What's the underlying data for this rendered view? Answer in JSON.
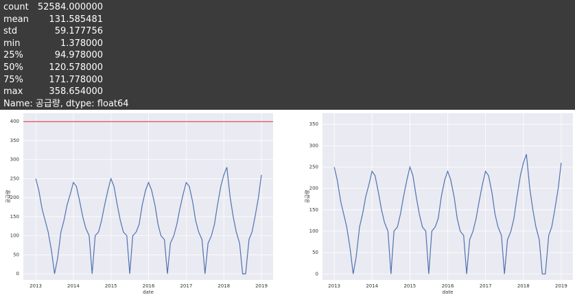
{
  "output": {
    "stats": [
      [
        "count",
        "52584.000000"
      ],
      [
        "mean",
        "131.585481"
      ],
      [
        "std",
        "59.177756"
      ],
      [
        "min",
        "1.378000"
      ],
      [
        "25%",
        "94.978000"
      ],
      [
        "50%",
        "120.578000"
      ],
      [
        "75%",
        "171.778000"
      ],
      [
        "max",
        "358.654000"
      ]
    ],
    "footer": "Name: 공급량, dtype: float64"
  },
  "chart_data": [
    {
      "type": "line",
      "xlabel": "date",
      "ylabel": "공급량",
      "xlim": [
        2012.67,
        2019.31
      ],
      "ylim": [
        -16,
        422
      ],
      "xticks": [
        2013,
        2014,
        2015,
        2016,
        2017,
        2018,
        2019
      ],
      "yticks": [
        0,
        50,
        100,
        150,
        200,
        250,
        300,
        350,
        400
      ],
      "grid": true,
      "hline": 400,
      "hline_color": "#d62728",
      "x": [
        2013,
        2013.08,
        2013.17,
        2013.25,
        2013.33,
        2013.42,
        2013.5,
        2013.58,
        2013.67,
        2013.75,
        2013.83,
        2013.92,
        2014,
        2014.08,
        2014.17,
        2014.25,
        2014.33,
        2014.42,
        2014.5,
        2014.58,
        2014.67,
        2014.75,
        2014.83,
        2014.92,
        2015,
        2015.08,
        2015.17,
        2015.25,
        2015.33,
        2015.42,
        2015.5,
        2015.58,
        2015.67,
        2015.75,
        2015.83,
        2015.92,
        2016,
        2016.08,
        2016.17,
        2016.25,
        2016.33,
        2016.42,
        2016.5,
        2016.58,
        2016.67,
        2016.75,
        2016.83,
        2016.92,
        2017,
        2017.08,
        2017.17,
        2017.25,
        2017.33,
        2017.42,
        2017.5,
        2017.58,
        2017.67,
        2017.75,
        2017.83,
        2017.92,
        2018,
        2018.08,
        2018.17,
        2018.25,
        2018.33,
        2018.42,
        2018.5,
        2018.58,
        2018.67,
        2018.75,
        2018.83,
        2018.92,
        2019
      ],
      "series": [
        {
          "color": "#4c72b0",
          "values": [
            250,
            220,
            170,
            140,
            110,
            60,
            0,
            40,
            110,
            140,
            180,
            210,
            240,
            230,
            190,
            150,
            120,
            100,
            0,
            100,
            110,
            140,
            180,
            220,
            250,
            230,
            180,
            140,
            110,
            100,
            0,
            100,
            110,
            130,
            180,
            220,
            240,
            220,
            180,
            130,
            100,
            90,
            0,
            80,
            100,
            130,
            170,
            210,
            240,
            230,
            190,
            140,
            110,
            90,
            0,
            80,
            100,
            130,
            180,
            230,
            260,
            280,
            200,
            150,
            110,
            80,
            0,
            0,
            90,
            110,
            150,
            200,
            260
          ]
        }
      ]
    },
    {
      "type": "line",
      "xlabel": "date",
      "ylabel": "공급량",
      "xlim": [
        2012.69,
        2019.31
      ],
      "ylim": [
        -14,
        376
      ],
      "xticks": [
        2013,
        2014,
        2015,
        2016,
        2017,
        2018,
        2019
      ],
      "yticks": [
        0,
        50,
        100,
        150,
        200,
        250,
        300,
        350
      ],
      "grid": true,
      "x": [
        2013,
        2013.08,
        2013.17,
        2013.25,
        2013.33,
        2013.42,
        2013.5,
        2013.58,
        2013.67,
        2013.75,
        2013.83,
        2013.92,
        2014,
        2014.08,
        2014.17,
        2014.25,
        2014.33,
        2014.42,
        2014.5,
        2014.58,
        2014.67,
        2014.75,
        2014.83,
        2014.92,
        2015,
        2015.08,
        2015.17,
        2015.25,
        2015.33,
        2015.42,
        2015.5,
        2015.58,
        2015.67,
        2015.75,
        2015.83,
        2015.92,
        2016,
        2016.08,
        2016.17,
        2016.25,
        2016.33,
        2016.42,
        2016.5,
        2016.58,
        2016.67,
        2016.75,
        2016.83,
        2016.92,
        2017,
        2017.08,
        2017.17,
        2017.25,
        2017.33,
        2017.42,
        2017.5,
        2017.58,
        2017.67,
        2017.75,
        2017.83,
        2017.92,
        2018,
        2018.08,
        2018.17,
        2018.25,
        2018.33,
        2018.42,
        2018.5,
        2018.58,
        2018.67,
        2018.75,
        2018.83,
        2018.92,
        2019
      ],
      "series": [
        {
          "color": "#4c72b0",
          "values": [
            250,
            220,
            170,
            140,
            110,
            60,
            0,
            40,
            110,
            140,
            180,
            210,
            240,
            230,
            190,
            150,
            120,
            100,
            0,
            100,
            110,
            140,
            180,
            220,
            250,
            230,
            180,
            140,
            110,
            100,
            0,
            100,
            110,
            130,
            180,
            220,
            240,
            220,
            180,
            130,
            100,
            90,
            0,
            80,
            100,
            130,
            170,
            210,
            240,
            230,
            190,
            140,
            110,
            90,
            0,
            80,
            100,
            130,
            180,
            230,
            260,
            280,
            200,
            150,
            110,
            80,
            0,
            0,
            90,
            110,
            150,
            200,
            260
          ]
        }
      ]
    }
  ]
}
